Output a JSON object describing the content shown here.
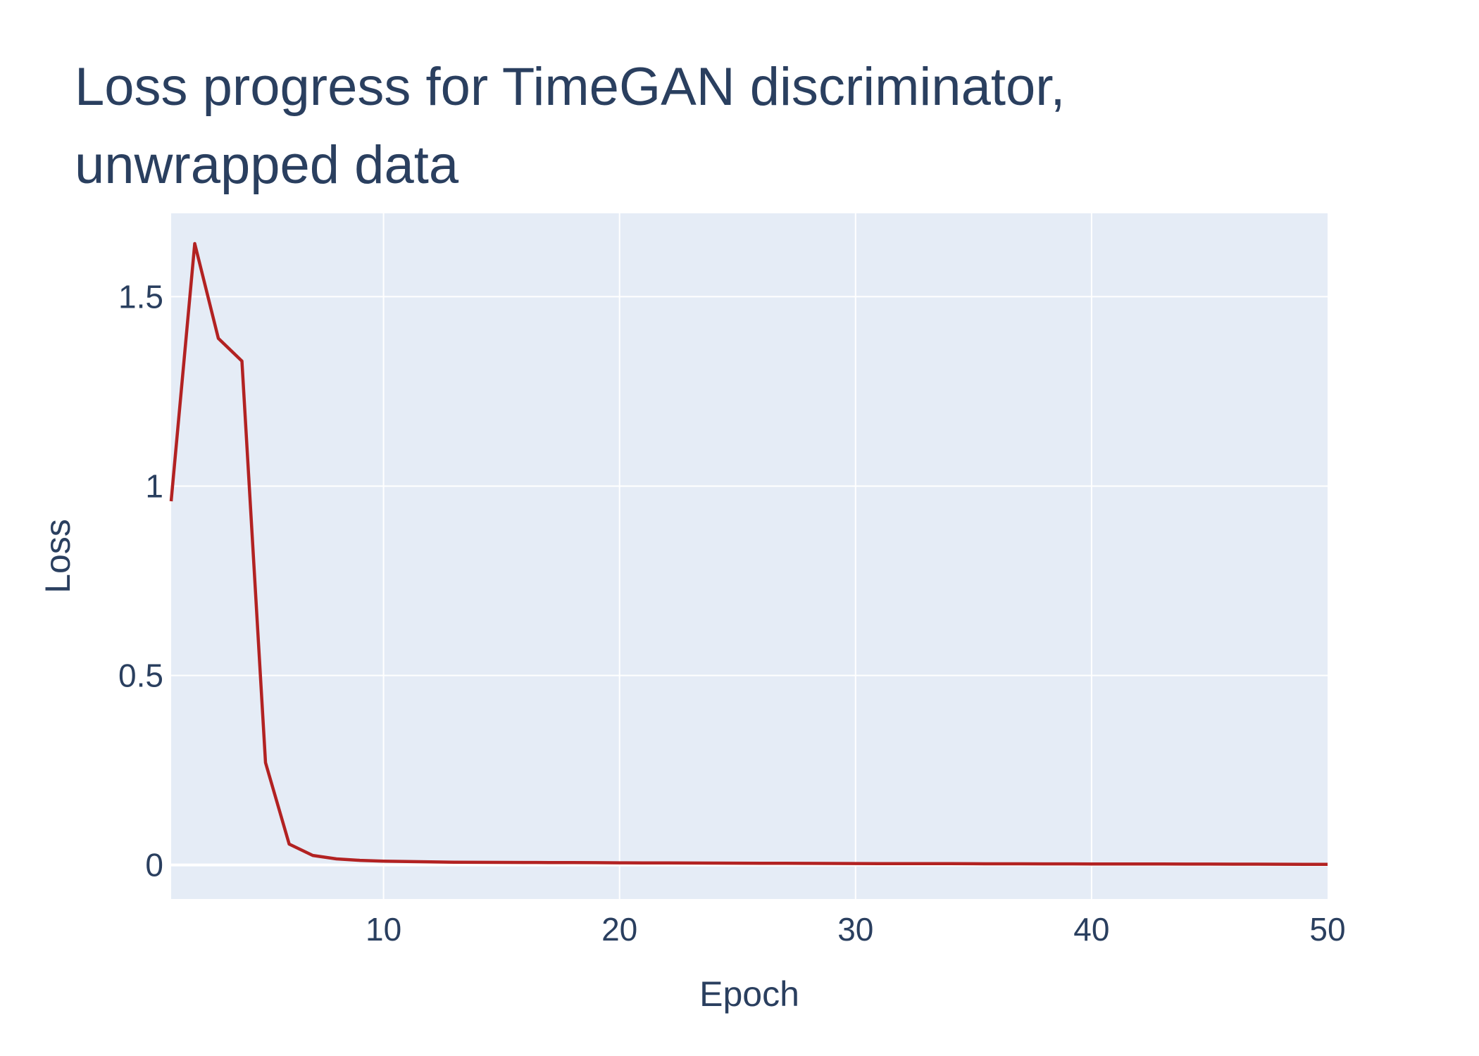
{
  "chart_data": {
    "type": "line",
    "title_lines": [
      "Loss progress for TimeGAN discriminator,",
      "unwrapped data"
    ],
    "xlabel": "Epoch",
    "ylabel": "Loss",
    "xlim": [
      1,
      50
    ],
    "ylim": [
      -0.09,
      1.72
    ],
    "x_ticks": [
      10,
      20,
      30,
      40,
      50
    ],
    "y_ticks": [
      0,
      0.5,
      1,
      1.5
    ],
    "y_tick_labels": [
      "0",
      "0.5",
      "1",
      "1.5"
    ],
    "grid": true,
    "legend": "none",
    "colors": {
      "line": "#b22222",
      "plot_bg": "#e5ecf6",
      "grid": "#ffffff",
      "text": "#2a3f5f"
    },
    "series": [
      {
        "x": [
          1,
          2,
          3,
          4,
          5,
          6,
          7,
          8,
          9,
          10,
          11,
          12,
          13,
          14,
          15,
          16,
          17,
          18,
          19,
          20,
          21,
          22,
          23,
          24,
          25,
          26,
          27,
          28,
          29,
          30,
          31,
          32,
          33,
          34,
          35,
          36,
          37,
          38,
          39,
          40,
          41,
          42,
          43,
          44,
          45,
          46,
          47,
          48,
          49,
          50
        ],
        "y": [
          0.96,
          1.64,
          1.39,
          1.33,
          0.27,
          0.055,
          0.025,
          0.016,
          0.012,
          0.01,
          0.009,
          0.008,
          0.007,
          0.0068,
          0.0066,
          0.0064,
          0.0062,
          0.006,
          0.0058,
          0.0056,
          0.0054,
          0.0052,
          0.005,
          0.0048,
          0.0046,
          0.0044,
          0.0042,
          0.004,
          0.0038,
          0.0036,
          0.0035,
          0.0034,
          0.0033,
          0.0032,
          0.0031,
          0.003,
          0.0029,
          0.0028,
          0.0027,
          0.0026,
          0.0025,
          0.0024,
          0.0023,
          0.0022,
          0.0021,
          0.002,
          0.0019,
          0.0018,
          0.0017,
          0.0016
        ]
      }
    ]
  }
}
